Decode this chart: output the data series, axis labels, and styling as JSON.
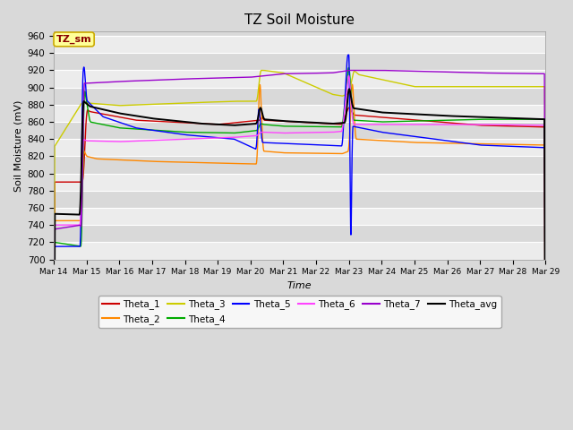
{
  "title": "TZ Soil Moisture",
  "xlabel": "Time",
  "ylabel": "Soil Moisture (mV)",
  "ylim": [
    700,
    965
  ],
  "yticks": [
    700,
    720,
    740,
    760,
    780,
    800,
    820,
    840,
    860,
    880,
    900,
    920,
    940,
    960
  ],
  "x_tick_labels": [
    "Mar 14",
    "Mar 15",
    "Mar 16",
    "Mar 17",
    "Mar 18",
    "Mar 19",
    "Mar 20",
    "Mar 21",
    "Mar 22",
    "Mar 23",
    "Mar 24",
    "Mar 25",
    "Mar 26",
    "Mar 27",
    "Mar 28",
    "Mar 29"
  ],
  "series_colors": {
    "Theta_1": "#cc0000",
    "Theta_2": "#ff8800",
    "Theta_3": "#cccc00",
    "Theta_4": "#00aa00",
    "Theta_5": "#0000ff",
    "Theta_6": "#ff44ff",
    "Theta_7": "#9900cc",
    "Theta_avg": "#000000"
  },
  "plot_bg_color": "#d9d9d9",
  "fig_bg_color": "#d9d9d9",
  "legend_box_color": "#ffff99",
  "legend_box_edge": "#ccaa00",
  "label_box_text": "TZ_sm",
  "label_box_text_color": "#880000"
}
